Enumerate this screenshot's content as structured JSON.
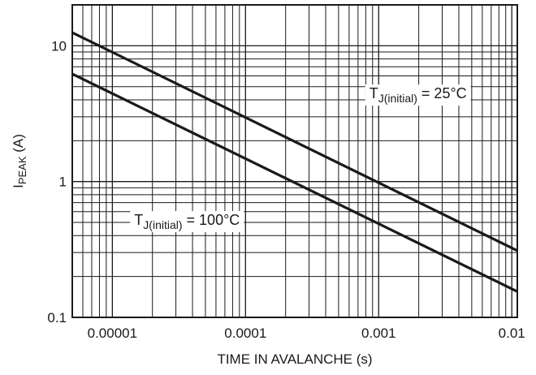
{
  "chart_data": {
    "type": "line",
    "xscale": "log",
    "yscale": "log",
    "xlim": [
      5e-06,
      0.011
    ],
    "ylim": [
      0.1,
      20
    ],
    "xlabel": "TIME IN AVALANCHE (s)",
    "ylabel": {
      "main": "I",
      "sub": "PEAK",
      "suffix": " (A)"
    },
    "xticks": [
      {
        "value": 1e-05,
        "label": "0.00001"
      },
      {
        "value": 0.0001,
        "label": "0.0001"
      },
      {
        "value": 0.001,
        "label": "0.001"
      },
      {
        "value": 0.01,
        "label": "0.01"
      }
    ],
    "yticks": [
      {
        "value": 0.1,
        "label": "0.1"
      },
      {
        "value": 1,
        "label": "1"
      },
      {
        "value": 10,
        "label": "10"
      }
    ],
    "grid": true,
    "series": [
      {
        "name": "T_J(initial) = 25°C",
        "label_main": "T",
        "label_sub": "J(initial)",
        "label_rest": " = 25°C",
        "x": [
          5e-06,
          0.011
        ],
        "y": [
          12.5,
          0.31
        ]
      },
      {
        "name": "T_J(initial) = 100°C",
        "label_main": "T",
        "label_sub": "J(initial)",
        "label_rest": " = 100°C",
        "x": [
          5e-06,
          0.011
        ],
        "y": [
          6.2,
          0.155
        ]
      }
    ],
    "colors": {
      "line": "#1a1a1a",
      "grid": "#1a1a1a"
    }
  }
}
